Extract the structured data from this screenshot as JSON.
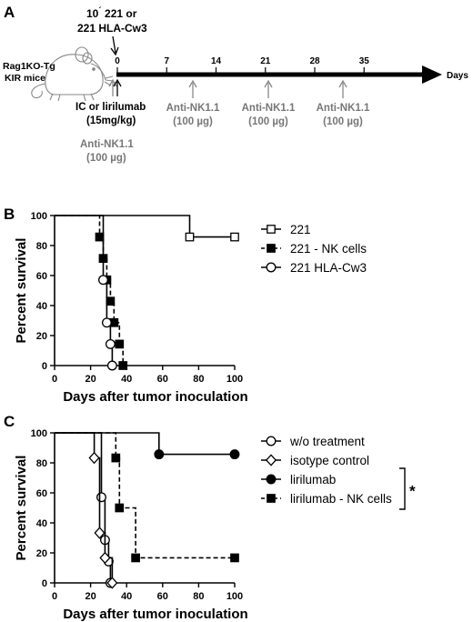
{
  "panel_a": {
    "letter": "A",
    "mouse_label_line1": "Rag1KO-Tg",
    "mouse_label_line2": "KIR mice",
    "injection_line1": "10",
    "injection_line1_mark": "´",
    "injection_line1_rest": " 221 or",
    "injection_line2": "221 HLA-Cw3",
    "axis_label": "Days",
    "ticks": [
      "0",
      "7",
      "14",
      "21",
      "28",
      "35"
    ],
    "treatment_line1": "IC or lirilumab",
    "treatment_line2": "(15mg/kg)",
    "nk_label": "Anti-NK1.1",
    "nk_dose": "(100 µg)"
  },
  "chart_data": [
    {
      "type": "line",
      "panel": "B",
      "ylabel": "Percent survival",
      "xlabel": "Days after tumor inoculation",
      "xlim": [
        0,
        100
      ],
      "ylim": [
        0,
        100
      ],
      "xticks": [
        "0",
        "20",
        "40",
        "60",
        "80",
        "100"
      ],
      "yticks": [
        "0",
        "20",
        "40",
        "60",
        "80",
        "100"
      ],
      "legend_position": "right",
      "series": [
        {
          "name": "221",
          "marker": "open-square",
          "dash": false,
          "steps": [
            [
              0,
              100
            ],
            [
              75,
              100
            ],
            [
              75,
              85.7
            ],
            [
              100,
              85.7
            ]
          ],
          "points": [
            [
              75,
              85.7
            ],
            [
              100,
              85.7
            ]
          ]
        },
        {
          "name": "221 - NK cells",
          "marker": "filled-square",
          "dash": true,
          "steps": [
            [
              0,
              100
            ],
            [
              25,
              100
            ],
            [
              25,
              85.7
            ],
            [
              27,
              85.7
            ],
            [
              27,
              71.4
            ],
            [
              29,
              71.4
            ],
            [
              29,
              57.1
            ],
            [
              31,
              57.1
            ],
            [
              31,
              42.9
            ],
            [
              33,
              42.9
            ],
            [
              33,
              28.6
            ],
            [
              36,
              28.6
            ],
            [
              36,
              14.3
            ],
            [
              38,
              14.3
            ],
            [
              38,
              0
            ]
          ],
          "points": [
            [
              25,
              85.7
            ],
            [
              27,
              71.4
            ],
            [
              29,
              57.1
            ],
            [
              31,
              42.9
            ],
            [
              33,
              28.6
            ],
            [
              36,
              14.3
            ],
            [
              38,
              0
            ]
          ]
        },
        {
          "name": "221 HLA-Cw3",
          "marker": "open-circle",
          "dash": false,
          "steps": [
            [
              0,
              100
            ],
            [
              27,
              100
            ],
            [
              27,
              57.1
            ],
            [
              29,
              57.1
            ],
            [
              29,
              28.6
            ],
            [
              31,
              28.6
            ],
            [
              31,
              14.3
            ],
            [
              32,
              14.3
            ],
            [
              32,
              0
            ]
          ],
          "points": [
            [
              27,
              57.1
            ],
            [
              29,
              28.6
            ],
            [
              31,
              14.3
            ],
            [
              32,
              0
            ]
          ]
        }
      ]
    },
    {
      "type": "line",
      "panel": "C",
      "ylabel": "Percent survival",
      "xlabel": "Days after tumor inoculation",
      "xlim": [
        0,
        100
      ],
      "ylim": [
        0,
        100
      ],
      "xticks": [
        "0",
        "20",
        "40",
        "60",
        "80",
        "100"
      ],
      "yticks": [
        "0",
        "20",
        "40",
        "60",
        "80",
        "100"
      ],
      "legend_position": "right",
      "significance": "*",
      "series": [
        {
          "name": "w/o treatment",
          "marker": "open-circle",
          "dash": false,
          "steps": [
            [
              0,
              100
            ],
            [
              26,
              100
            ],
            [
              26,
              57.1
            ],
            [
              28,
              57.1
            ],
            [
              28,
              28.6
            ],
            [
              30,
              28.6
            ],
            [
              30,
              14.3
            ],
            [
              31,
              14.3
            ],
            [
              31,
              0
            ]
          ],
          "points": [
            [
              26,
              57.1
            ],
            [
              28,
              28.6
            ],
            [
              30,
              14.3
            ],
            [
              31,
              0
            ]
          ]
        },
        {
          "name": "isotype control",
          "marker": "open-diamond",
          "dash": false,
          "steps": [
            [
              0,
              100
            ],
            [
              22,
              100
            ],
            [
              22,
              83.3
            ],
            [
              25,
              83.3
            ],
            [
              25,
              33.3
            ],
            [
              28,
              33.3
            ],
            [
              28,
              16.7
            ],
            [
              32,
              16.7
            ],
            [
              32,
              0
            ]
          ],
          "points": [
            [
              22,
              83.3
            ],
            [
              25,
              33.3
            ],
            [
              28,
              16.7
            ],
            [
              32,
              0
            ]
          ]
        },
        {
          "name": "lirilumab",
          "marker": "filled-circle",
          "dash": false,
          "steps": [
            [
              0,
              100
            ],
            [
              58,
              100
            ],
            [
              58,
              85.7
            ],
            [
              100,
              85.7
            ]
          ],
          "points": [
            [
              58,
              85.7
            ],
            [
              100,
              85.7
            ]
          ]
        },
        {
          "name": "lirilumab - NK cells",
          "marker": "filled-square",
          "dash": true,
          "steps": [
            [
              0,
              100
            ],
            [
              34,
              100
            ],
            [
              34,
              83.3
            ],
            [
              36,
              83.3
            ],
            [
              36,
              50
            ],
            [
              45,
              50
            ],
            [
              45,
              16.7
            ],
            [
              100,
              16.7
            ]
          ],
          "points": [
            [
              34,
              83.3
            ],
            [
              36,
              50
            ],
            [
              45,
              16.7
            ],
            [
              100,
              16.7
            ]
          ]
        }
      ]
    }
  ]
}
